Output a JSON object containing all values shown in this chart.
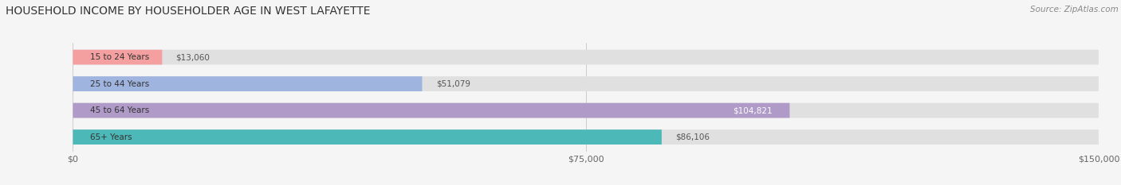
{
  "title": "HOUSEHOLD INCOME BY HOUSEHOLDER AGE IN WEST LAFAYETTE",
  "source": "Source: ZipAtlas.com",
  "categories": [
    "15 to 24 Years",
    "25 to 44 Years",
    "45 to 64 Years",
    "65+ Years"
  ],
  "values": [
    13060,
    51079,
    104821,
    86106
  ],
  "bar_colors": [
    "#f4a0a0",
    "#a0b4e0",
    "#b09ac8",
    "#4db8b8"
  ],
  "bar_labels": [
    "$13,060",
    "$51,079",
    "$104,821",
    "$86,106"
  ],
  "label_inside": [
    false,
    false,
    true,
    false
  ],
  "x_max": 150000,
  "x_ticks": [
    0,
    75000,
    150000
  ],
  "x_tick_labels": [
    "$0",
    "$75,000",
    "$150,000"
  ],
  "background_color": "#f5f5f5",
  "bar_background_color": "#e0e0e0",
  "title_fontsize": 10,
  "source_fontsize": 7.5,
  "label_fontsize": 7.5,
  "tick_fontsize": 8,
  "category_fontsize": 7.5
}
